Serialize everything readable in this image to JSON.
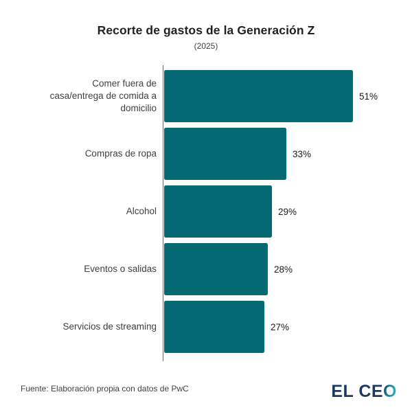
{
  "page": {
    "background": "#ffffff"
  },
  "chart_data": {
    "type": "bar",
    "orientation": "horizontal",
    "title": "Recorte de gastos de la Generación Z",
    "subtitle": "(2025)",
    "categories": [
      "Comer fuera de\ncasa/entrega de comida a\ndomicilio",
      "Compras de ropa",
      "Alcohol",
      "Eventos o salidas",
      "Servicios de streaming"
    ],
    "values": [
      51,
      33,
      29,
      28,
      27
    ],
    "value_labels": [
      "51%",
      "33%",
      "29%",
      "28%",
      "27%"
    ],
    "xlim": [
      0,
      63
    ],
    "grid": false,
    "legend": false,
    "bar_color": "#046973",
    "axis_color": "#6b6b6b"
  },
  "footer": {
    "source": "Fuente: Elaboración propia con datos de PwC",
    "logo": {
      "primary": "EL CE",
      "accent": "O",
      "primary_color": "#1a3a5f",
      "accent_color_start": "#15607a",
      "accent_color_end": "#2ab5bd"
    }
  }
}
